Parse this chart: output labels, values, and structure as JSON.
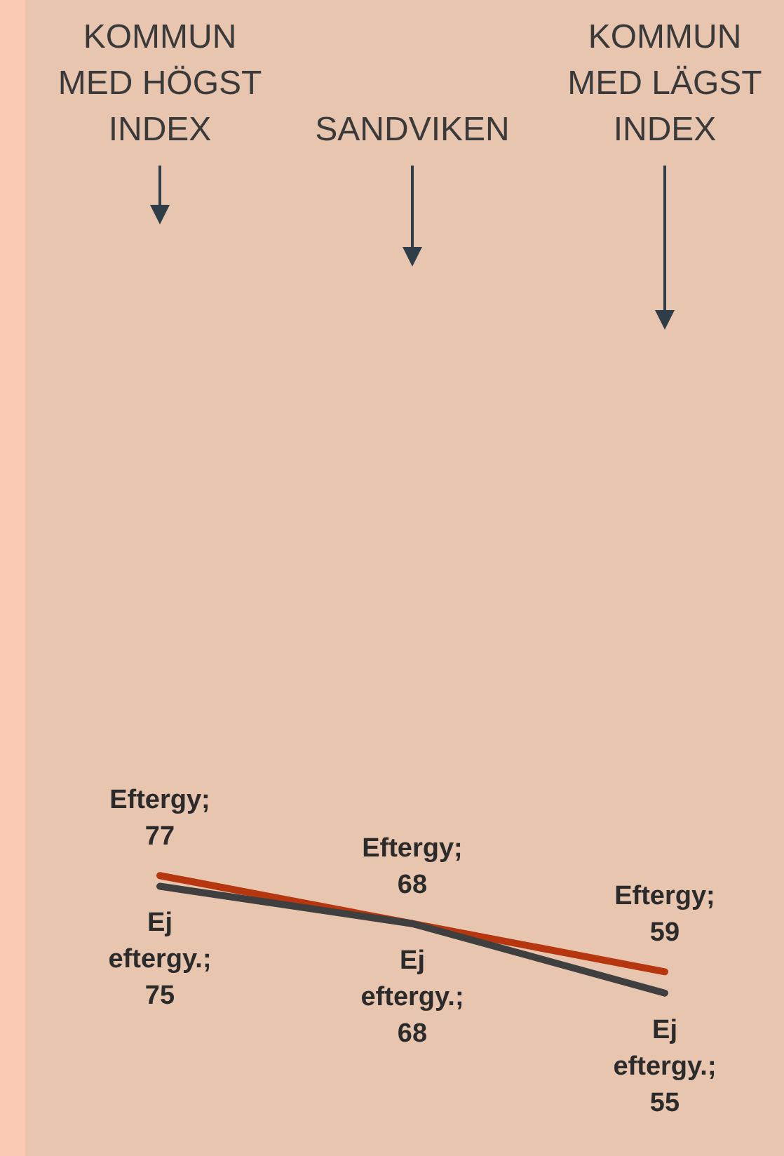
{
  "chart_data": {
    "type": "line",
    "categories": [
      "KOMMUN MED HÖGST INDEX",
      "SANDVIKEN",
      "KOMMUN MED LÄGST INDEX"
    ],
    "series": [
      {
        "color": "#b5360f",
        "values": [
          77,
          68,
          59
        ],
        "value_labels": [
          "Eftergy; 77",
          "Eftergy; 68",
          "Eftergy; 59"
        ]
      },
      {
        "color": "#3f3f3f",
        "values": [
          75,
          68,
          55
        ],
        "value_labels": [
          "Ej eftergy.; 75",
          "Ej eftergy.; 68",
          "Ej eftergy.; 55"
        ]
      }
    ],
    "marker": "none",
    "line_style": "solid"
  }
}
